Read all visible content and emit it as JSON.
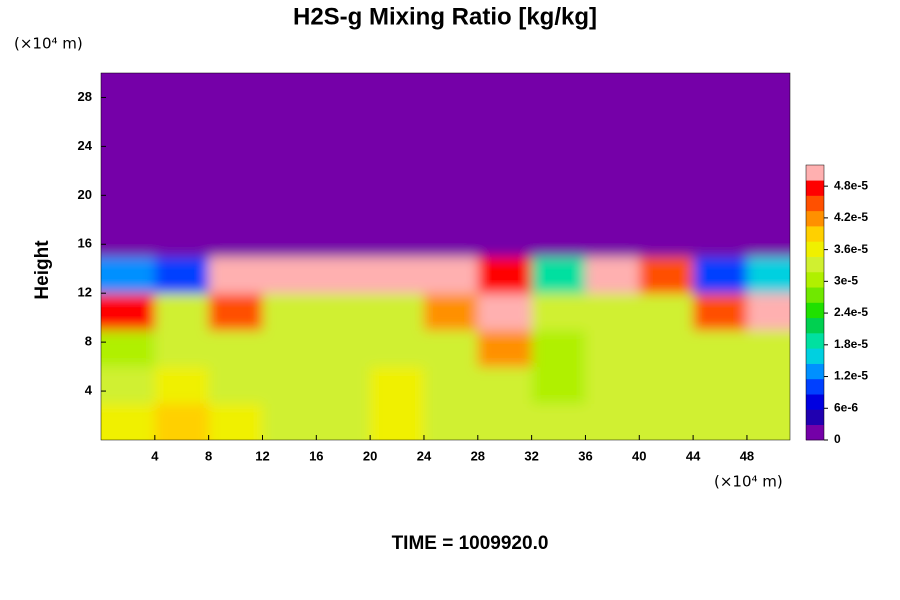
{
  "chart_data": {
    "type": "heatmap",
    "title": "H2S-g Mixing Ratio [kg/kg]",
    "ylabel": "Height",
    "y_unit": "(×10⁴ m)",
    "x_unit": "(×10⁴ m)",
    "footer": "TIME = 1009920.0",
    "xlim": [
      0,
      51.2
    ],
    "ylim": [
      0,
      30
    ],
    "xticks": [
      4,
      8,
      12,
      16,
      20,
      24,
      28,
      32,
      36,
      40,
      44,
      48
    ],
    "yticks": [
      4,
      8,
      12,
      16,
      20,
      24,
      28
    ],
    "x": [
      2,
      6,
      10,
      14,
      18,
      22,
      26,
      30,
      34,
      38,
      42,
      46,
      50
    ],
    "y": [
      1.5,
      4.5,
      7.5,
      10.5,
      13.5,
      16.5,
      19.5,
      22.5,
      25.5,
      28.5
    ],
    "z": [
      [
        3.5e-05,
        4e-05,
        3.6e-05,
        3.4e-05,
        3.4e-05,
        3.5e-05,
        3.4e-05,
        3.3e-05,
        3.2e-05,
        3.3e-05,
        3.4e-05,
        3.3e-05,
        3.4e-05
      ],
      [
        3.4e-05,
        3.6e-05,
        3.4e-05,
        3.3e-05,
        3.4e-05,
        3.5e-05,
        3.3e-05,
        3.3e-05,
        3.1e-05,
        3.3e-05,
        3.3e-05,
        3.3e-05,
        3.3e-05
      ],
      [
        3e-05,
        3.3e-05,
        3.3e-05,
        3.2e-05,
        3.3e-05,
        3.4e-05,
        3.3e-05,
        4.3e-05,
        3e-05,
        3.3e-05,
        3.3e-05,
        3.3e-05,
        3.4e-05
      ],
      [
        4.8e-05,
        3.3e-05,
        4.6e-05,
        3.3e-05,
        3.3e-05,
        3.4e-05,
        4.2e-05,
        5e-05,
        3.4e-05,
        3.2e-05,
        3.3e-05,
        4.4e-05,
        5e-05
      ],
      [
        1.2e-05,
        1e-05,
        5.1e-05,
        5.1e-05,
        5.1e-05,
        5.1e-05,
        5.1e-05,
        4.8e-05,
        2e-05,
        5.1e-05,
        4.6e-05,
        9e-06,
        1.5e-05
      ],
      [
        0,
        0,
        0,
        0,
        0,
        0,
        0,
        0,
        0,
        0,
        0,
        0,
        0
      ],
      [
        0,
        0,
        0,
        0,
        0,
        0,
        0,
        0,
        0,
        0,
        0,
        0,
        0
      ],
      [
        0,
        0,
        0,
        0,
        0,
        0,
        0,
        0,
        0,
        0,
        0,
        0,
        0
      ],
      [
        0,
        0,
        0,
        0,
        0,
        0,
        0,
        0,
        0,
        0,
        0,
        0,
        0
      ],
      [
        0,
        0,
        0,
        0,
        0,
        0,
        0,
        0,
        0,
        0,
        0,
        0,
        0
      ]
    ],
    "colorbar": {
      "lim": [
        0,
        5.2e-05
      ],
      "ticks": [
        0,
        {
          "value": 6e-06,
          "label": "6e-6"
        },
        {
          "value": 1.2e-05,
          "label": "1.2e-5"
        },
        {
          "value": 1.8e-05,
          "label": "1.8e-5"
        },
        {
          "value": 2.4e-05,
          "label": "2.4e-5"
        },
        {
          "value": 3e-05,
          "label": "3e-5"
        },
        {
          "value": 3.6e-05,
          "label": "3.6e-5"
        },
        {
          "value": 4.2e-05,
          "label": "4.2e-5"
        },
        {
          "value": 4.8e-05,
          "label": "4.8e-5"
        }
      ],
      "colors": [
        "#7400a8",
        "#2000b0",
        "#0000e0",
        "#0040ff",
        "#0090ff",
        "#00d0e0",
        "#00e0a0",
        "#00d050",
        "#20e000",
        "#70e800",
        "#b0f000",
        "#d0f030",
        "#f0f000",
        "#ffd000",
        "#ff9000",
        "#ff5000",
        "#ff0000",
        "#ffb0b0"
      ]
    }
  }
}
